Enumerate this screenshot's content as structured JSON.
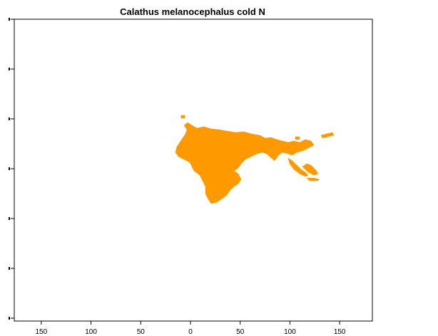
{
  "title": "Calathus melanocephalus cold N",
  "chart_data": {
    "type": "map",
    "title": "Calathus melanocephalus cold N",
    "x_ticks": [
      -150,
      -100,
      -50,
      0,
      50,
      100,
      150
    ],
    "x_tick_labels": [
      "150",
      "100",
      "50",
      "0",
      "50",
      "100",
      "150"
    ],
    "xlim": [
      -180,
      180
    ],
    "ylim": [
      -90,
      90
    ],
    "y_ticks": [
      -80,
      -40,
      0,
      40,
      80
    ],
    "fill_color": "#ff9900",
    "frame": true
  }
}
